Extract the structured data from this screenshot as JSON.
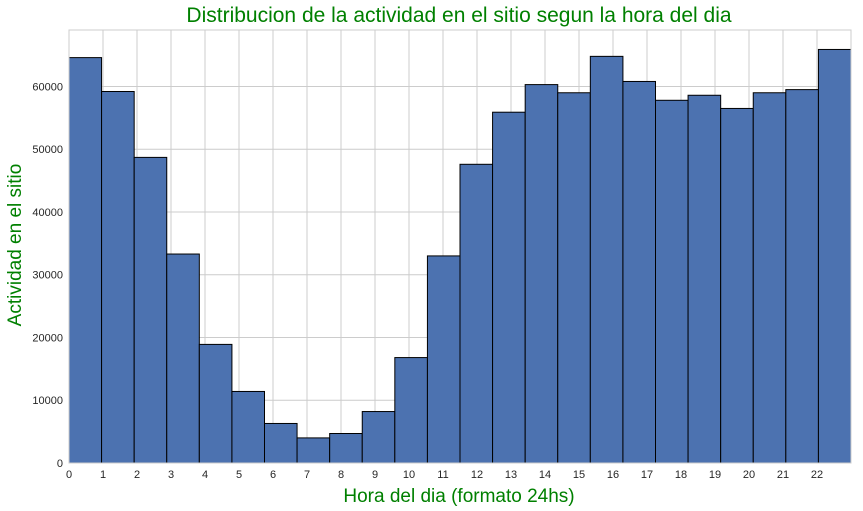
{
  "chart_data": {
    "type": "bar",
    "title": "Distribucion de la actividad en el sitio segun la hora del dia",
    "xlabel": "Hora del dia (formato 24hs)",
    "ylabel": "Actividad en el sitio",
    "bin_edges": [
      0,
      0.958,
      1.917,
      2.875,
      3.833,
      4.792,
      5.75,
      6.708,
      7.667,
      8.625,
      9.583,
      10.542,
      11.5,
      12.458,
      13.417,
      14.375,
      15.333,
      16.292,
      17.25,
      18.208,
      19.167,
      20.125,
      21.083,
      22.042,
      23
    ],
    "values": [
      64600,
      59200,
      48700,
      33300,
      18900,
      11400,
      6300,
      4000,
      4700,
      8200,
      16800,
      33000,
      47600,
      55900,
      60300,
      59000,
      64800,
      60800,
      57800,
      58600,
      56500,
      59000,
      59500,
      65900
    ],
    "xticks": [
      "0",
      "1",
      "2",
      "3",
      "4",
      "5",
      "6",
      "7",
      "8",
      "9",
      "10",
      "11",
      "12",
      "13",
      "14",
      "15",
      "16",
      "17",
      "18",
      "19",
      "20",
      "21",
      "22"
    ],
    "yticks": [
      "0",
      "10000",
      "20000",
      "30000",
      "40000",
      "50000",
      "60000"
    ],
    "xlim": [
      0,
      23
    ],
    "ylim": [
      0,
      69000
    ],
    "grid": true,
    "colors": {
      "bar": "#4c72b0",
      "edge": "#000000",
      "grid": "#cccccc",
      "text": "#008000"
    }
  }
}
